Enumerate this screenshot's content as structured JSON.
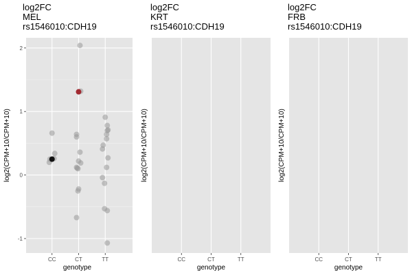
{
  "chart_data": [
    {
      "type": "scatter",
      "title_lines": [
        "log2FC",
        "MEL",
        "rs1546010:CDH19"
      ],
      "xlabel": "genotype",
      "ylabel": "log2(CPM+10/CPM+10)",
      "categories": [
        "CC",
        "CT",
        "TT"
      ],
      "y_ticks": [
        -1,
        0,
        1,
        2
      ],
      "ylim": [
        -1.22,
        2.15
      ],
      "grid": true,
      "background": "#e5e5e5",
      "colors": {
        "points": "#999999",
        "highlight_dark": "#000000",
        "highlight_red": "#a01c24"
      },
      "series": [
        {
          "name": "",
          "color": "#999999",
          "points": [
            {
              "x": "CC",
              "y": 0.66
            },
            {
              "x": "CC",
              "y": 0.34
            },
            {
              "x": "CC",
              "y": 0.26
            },
            {
              "x": "CC",
              "y": 0.2
            },
            {
              "x": "CC",
              "y": 0.25
            },
            {
              "x": "CT",
              "y": 2.04
            },
            {
              "x": "CT",
              "y": 1.31
            },
            {
              "x": "CT",
              "y": 1.32
            },
            {
              "x": "CT",
              "y": 0.64
            },
            {
              "x": "CT",
              "y": 0.6
            },
            {
              "x": "CT",
              "y": 0.36
            },
            {
              "x": "CT",
              "y": 0.22
            },
            {
              "x": "CT",
              "y": 0.19
            },
            {
              "x": "CT",
              "y": 0.12
            },
            {
              "x": "CT",
              "y": 0.11
            },
            {
              "x": "CT",
              "y": 0.1
            },
            {
              "x": "CT",
              "y": -0.22
            },
            {
              "x": "CT",
              "y": -0.25
            },
            {
              "x": "CT",
              "y": -0.67
            },
            {
              "x": "TT",
              "y": 0.91
            },
            {
              "x": "TT",
              "y": 0.78
            },
            {
              "x": "TT",
              "y": 0.71
            },
            {
              "x": "TT",
              "y": 0.7
            },
            {
              "x": "TT",
              "y": 0.64
            },
            {
              "x": "TT",
              "y": 0.57
            },
            {
              "x": "TT",
              "y": 0.47
            },
            {
              "x": "TT",
              "y": 0.41
            },
            {
              "x": "TT",
              "y": 0.27
            },
            {
              "x": "TT",
              "y": 0.12
            },
            {
              "x": "TT",
              "y": -0.04
            },
            {
              "x": "TT",
              "y": -0.13
            },
            {
              "x": "TT",
              "y": -0.53
            },
            {
              "x": "TT",
              "y": -0.56
            },
            {
              "x": "TT",
              "y": -1.07
            }
          ]
        },
        {
          "name": "",
          "color": "#a01c24",
          "points": [
            {
              "x": "CT",
              "y": 1.31
            }
          ]
        },
        {
          "name": "",
          "color": "#000000",
          "points": [
            {
              "x": "CC",
              "y": 0.25
            }
          ]
        }
      ]
    },
    {
      "type": "scatter",
      "title_lines": [
        "log2FC",
        "KRT",
        "rs1546010:CDH19"
      ],
      "xlabel": "genotype",
      "ylabel": "log2(CPM+10/CPM+10)",
      "categories": [
        "CC",
        "CT",
        "TT"
      ],
      "y_ticks": [],
      "grid": true,
      "background": "#e5e5e5",
      "series": []
    },
    {
      "type": "scatter",
      "title_lines": [
        "log2FC",
        "FRB",
        "rs1546010:CDH19"
      ],
      "xlabel": "genotype",
      "ylabel": "log2(CPM+10/CPM+10)",
      "categories": [
        "CC",
        "CT",
        "TT"
      ],
      "y_ticks": [],
      "grid": true,
      "background": "#e5e5e5",
      "series": []
    }
  ]
}
